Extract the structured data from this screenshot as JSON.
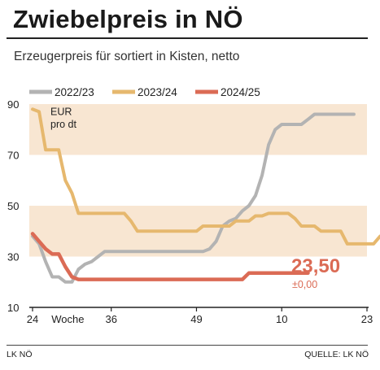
{
  "header": {
    "title": "Zwiebelpreis in NÖ",
    "subtitle": "Erzeugerpreis für sortiert in Kisten, netto"
  },
  "footer": {
    "left": "LK NÖ",
    "right": "QUELLE: LK NÖ"
  },
  "chart_data": {
    "type": "line",
    "title": "",
    "xlabel": "Woche",
    "ylabel": "",
    "unit_label": [
      "EUR",
      "pro dt"
    ],
    "ylim": [
      10,
      90
    ],
    "yticks": [
      10,
      30,
      50,
      70,
      90
    ],
    "bands": [
      [
        30,
        50
      ],
      [
        70,
        90
      ]
    ],
    "band_color": "#f8e6d2",
    "xticks": [
      {
        "i": 0,
        "label": "24"
      },
      {
        "i": 12,
        "label": "36"
      },
      {
        "i": 25,
        "label": "49"
      },
      {
        "i": 38,
        "label": "10"
      },
      {
        "i": 51,
        "label": "23"
      }
    ],
    "x_axis_name_index": 6,
    "series": [
      {
        "name": "2022/23",
        "color": "#b3b3b3",
        "values": [
          38,
          35,
          28,
          22,
          22,
          20,
          20,
          25,
          27,
          28,
          30,
          32,
          32,
          32,
          32,
          32,
          32,
          32,
          32,
          32,
          32,
          32,
          32,
          32,
          32,
          32,
          32,
          33,
          36,
          42,
          44,
          45,
          48,
          50,
          54,
          62,
          74,
          80,
          82,
          82,
          82,
          82,
          84,
          86,
          86,
          86,
          86,
          86,
          86,
          86
        ]
      },
      {
        "name": "2023/24",
        "color": "#e6b86e",
        "values": [
          88,
          87,
          72,
          72,
          72,
          60,
          55,
          47,
          47,
          47,
          47,
          47,
          47,
          47,
          47,
          44,
          40,
          40,
          40,
          40,
          40,
          40,
          40,
          40,
          40,
          40,
          42,
          42,
          42,
          42,
          42,
          44,
          44,
          44,
          46,
          46,
          47,
          47,
          47,
          47,
          45,
          42,
          42,
          42,
          40,
          40,
          40,
          40,
          35,
          35,
          35,
          35,
          35,
          38
        ]
      },
      {
        "name": "2024/25",
        "color": "#db6b55",
        "values": [
          39,
          36,
          33,
          31,
          31,
          26,
          22,
          21,
          21,
          21,
          21,
          21,
          21,
          21,
          21,
          21,
          21,
          21,
          21,
          21,
          21,
          21,
          21,
          21,
          21,
          21,
          21,
          21,
          21,
          21,
          21,
          21,
          21,
          23.5,
          23.5,
          23.5,
          23.5,
          23.5,
          23.5,
          23.5,
          23.5,
          23.5,
          23.5
        ]
      }
    ],
    "current_value": "23,50",
    "current_change": "±0,00",
    "current_color": "#db6b55"
  }
}
